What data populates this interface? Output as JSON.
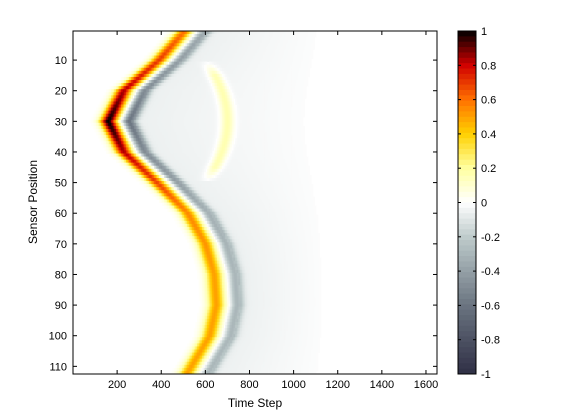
{
  "chart_data": {
    "type": "heatmap",
    "title": "",
    "xlabel": "Time Step",
    "ylabel": "Sensor Position",
    "xlim": [
      0,
      1650
    ],
    "ylim": [
      1,
      112
    ],
    "y_reversed": true,
    "xticks": [
      200,
      400,
      600,
      800,
      1000,
      1200,
      1400,
      1600
    ],
    "yticks": [
      10,
      20,
      30,
      40,
      50,
      60,
      70,
      80,
      90,
      100,
      110
    ],
    "colorbar": {
      "clim": [
        -1,
        1
      ],
      "ticks": [
        -1,
        -0.8,
        -0.6,
        -0.4,
        -0.2,
        0,
        0.2,
        0.4,
        0.6,
        0.8,
        1
      ],
      "tick_labels": [
        "-1",
        "-0.8",
        "-0.6",
        "-0.4",
        "-0.2",
        "0",
        "0.2",
        "0.4",
        "0.6",
        "0.8",
        "1"
      ],
      "colormap": [
        {
          "v": -1.0,
          "color": "#2f2f45"
        },
        {
          "v": -0.6,
          "color": "#6a7480"
        },
        {
          "v": -0.2,
          "color": "#bfcccc"
        },
        {
          "v": 0.0,
          "color": "#ffffff"
        },
        {
          "v": 0.2,
          "color": "#ffffa0"
        },
        {
          "v": 0.4,
          "color": "#ffd000"
        },
        {
          "v": 0.6,
          "color": "#ff7000"
        },
        {
          "v": 0.8,
          "color": "#d00000"
        },
        {
          "v": 1.0,
          "color": "#000000"
        }
      ]
    },
    "wavefront_path": [
      {
        "sensor": 1,
        "time": 500
      },
      {
        "sensor": 10,
        "time": 390
      },
      {
        "sensor": 20,
        "time": 230
      },
      {
        "sensor": 30,
        "time": 160
      },
      {
        "sensor": 40,
        "time": 230
      },
      {
        "sensor": 50,
        "time": 380
      },
      {
        "sensor": 60,
        "time": 520
      },
      {
        "sensor": 70,
        "time": 600
      },
      {
        "sensor": 80,
        "time": 640
      },
      {
        "sensor": 90,
        "time": 650
      },
      {
        "sensor": 100,
        "time": 620
      },
      {
        "sensor": 112,
        "time": 520
      }
    ],
    "wavefront_peak": [
      {
        "sensor": 1,
        "value": 0.6
      },
      {
        "sensor": 15,
        "value": 0.75
      },
      {
        "sensor": 30,
        "value": 1.0
      },
      {
        "sensor": 45,
        "value": 0.75
      },
      {
        "sensor": 60,
        "value": 0.55
      },
      {
        "sensor": 80,
        "value": 0.5
      },
      {
        "sensor": 112,
        "value": 0.5
      }
    ],
    "secondary_arc": {
      "sensor_start": 10,
      "sensor_end": 50,
      "time_at_ends": 600,
      "time_at_peak": 700,
      "peak_sensor": 30,
      "value": 0.2
    },
    "background_fade_end_time": 1200
  }
}
